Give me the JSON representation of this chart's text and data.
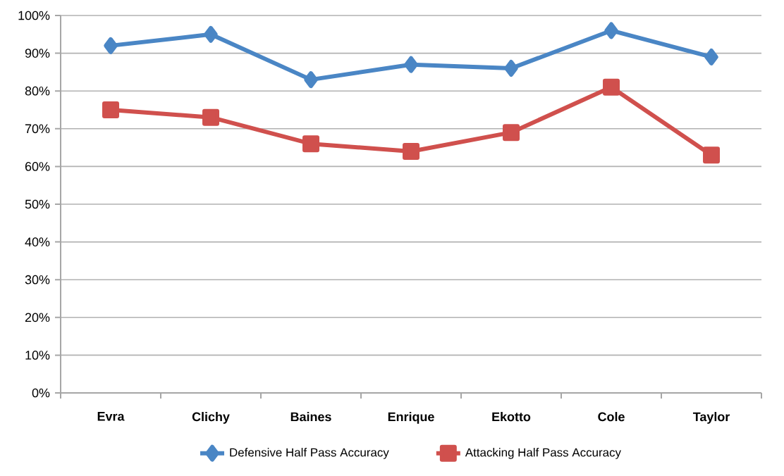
{
  "chart_data": {
    "type": "line",
    "categories": [
      "Evra",
      "Clichy",
      "Baines",
      "Enrique",
      "Ekotto",
      "Cole",
      "Taylor"
    ],
    "series": [
      {
        "name": "Defensive Half Pass Accuracy",
        "color": "#4a86c5",
        "marker": "diamond",
        "values": [
          92,
          95,
          83,
          87,
          86,
          96,
          89
        ]
      },
      {
        "name": "Attacking Half Pass Accuracy",
        "color": "#d0504d",
        "marker": "square",
        "values": [
          75,
          73,
          66,
          64,
          69,
          81,
          63
        ]
      }
    ],
    "ylim": [
      0,
      100
    ],
    "yticks": [
      {
        "value": 0,
        "label": "0%"
      },
      {
        "value": 10,
        "label": "10%"
      },
      {
        "value": 20,
        "label": "20%"
      },
      {
        "value": 30,
        "label": "30%"
      },
      {
        "value": 40,
        "label": "40%"
      },
      {
        "value": 50,
        "label": "50%"
      },
      {
        "value": 60,
        "label": "60%"
      },
      {
        "value": 70,
        "label": "70%"
      },
      {
        "value": 80,
        "label": "80%"
      },
      {
        "value": 90,
        "label": "90%"
      },
      {
        "value": 100,
        "label": "100%"
      }
    ],
    "grid": "y",
    "legend": "bottom",
    "line_style": "solid"
  }
}
